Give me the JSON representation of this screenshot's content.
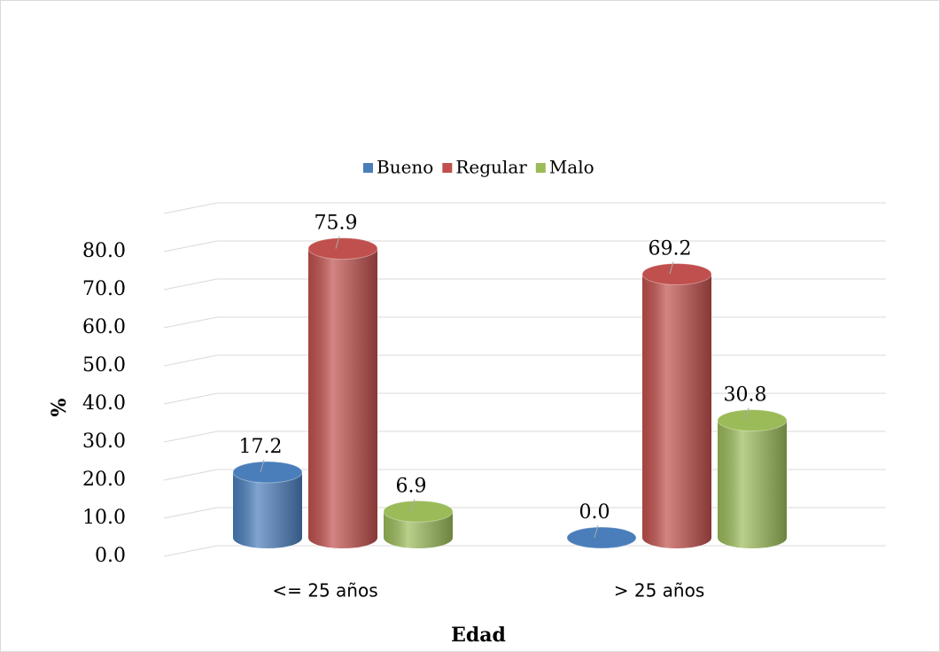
{
  "chart_data": {
    "type": "bar3d",
    "x_label": "Edad",
    "y_label": "%",
    "categories": [
      "<= 25 años",
      "> 25 años"
    ],
    "series": [
      {
        "name": "Bueno",
        "color": "#4a7ebb",
        "values": [
          17.2,
          0.0
        ],
        "value_labels": [
          "17.2",
          "0.0"
        ]
      },
      {
        "name": "Regular",
        "color": "#c0504d",
        "values": [
          75.9,
          69.2
        ],
        "value_labels": [
          "75.9",
          "69.2"
        ]
      },
      {
        "name": "Malo",
        "color": "#9bbb59",
        "values": [
          6.9,
          30.8
        ],
        "value_labels": [
          "6.9",
          "30.8"
        ]
      }
    ],
    "ylim": [
      0,
      90
    ],
    "yticks": [
      {
        "value": 0,
        "label": "0.0"
      },
      {
        "value": 10,
        "label": "10.0"
      },
      {
        "value": 20,
        "label": "20.0"
      },
      {
        "value": 30,
        "label": "30.0"
      },
      {
        "value": 40,
        "label": "40.0"
      },
      {
        "value": 50,
        "label": "50.0"
      },
      {
        "value": 60,
        "label": "60.0"
      },
      {
        "value": 70,
        "label": "70.0"
      },
      {
        "value": 80,
        "label": "80.0"
      }
    ],
    "grid": true,
    "legend": "top"
  }
}
